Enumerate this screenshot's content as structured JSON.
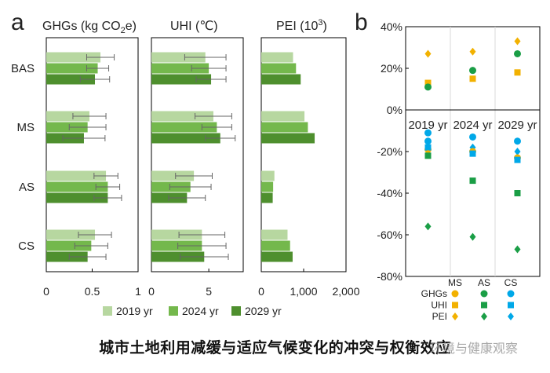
{
  "panel_labels": {
    "a": "a",
    "b": "b"
  },
  "caption": "城市土地利用减缓与适应气候变化的冲突与权衡效应",
  "watermark": "环境与健康观察",
  "chart_data": [
    {
      "type": "bar",
      "orientation": "horizontal",
      "panel": "a-1",
      "title": "GHGs (kg CO2e)",
      "categories": [
        "BAS",
        "MS",
        "AS",
        "CS"
      ],
      "xlim": [
        0,
        1
      ],
      "xticks": [
        0,
        0.5,
        1
      ],
      "xtick_labels": [
        "0",
        "0.5",
        "1"
      ],
      "series": [
        {
          "name": "2019 yr",
          "values": [
            0.59,
            0.47,
            0.65,
            0.53
          ],
          "err": [
            0.15,
            0.18,
            0.13,
            0.18
          ]
        },
        {
          "name": "2024 yr",
          "values": [
            0.56,
            0.45,
            0.67,
            0.49
          ],
          "err": [
            0.12,
            0.2,
            0.13,
            0.18
          ]
        },
        {
          "name": "2029 yr",
          "values": [
            0.53,
            0.41,
            0.67,
            0.45
          ],
          "err": [
            0.16,
            0.23,
            0.15,
            0.2
          ]
        }
      ]
    },
    {
      "type": "bar",
      "orientation": "horizontal",
      "panel": "a-2",
      "title": "UHI (℃)",
      "categories": [
        "BAS",
        "MS",
        "AS",
        "CS"
      ],
      "xlim": [
        0,
        8
      ],
      "xticks": [
        0,
        5
      ],
      "xtick_labels": [
        "0",
        "5"
      ],
      "series": [
        {
          "name": "2019 yr",
          "values": [
            4.7,
            5.4,
            3.7,
            4.4
          ],
          "err": [
            1.8,
            1.6,
            1.6,
            2.0
          ]
        },
        {
          "name": "2024 yr",
          "values": [
            5.0,
            5.7,
            3.4,
            4.4
          ],
          "err": [
            1.5,
            1.3,
            1.8,
            2.1
          ]
        },
        {
          "name": "2029 yr",
          "values": [
            5.2,
            6.0,
            3.1,
            4.6
          ],
          "err": [
            1.3,
            1.3,
            1.6,
            2.1
          ]
        }
      ]
    },
    {
      "type": "bar",
      "orientation": "horizontal",
      "panel": "a-3",
      "title": "PEI (103)",
      "categories": [
        "BAS",
        "MS",
        "AS",
        "CS"
      ],
      "xlim": [
        0,
        2000
      ],
      "xticks": [
        0,
        1000,
        2000
      ],
      "xtick_labels": [
        "0",
        "1,000",
        "2,000"
      ],
      "series": [
        {
          "name": "2019 yr",
          "values": [
            750,
            1020,
            310,
            620
          ]
        },
        {
          "name": "2024 yr",
          "values": [
            820,
            1100,
            280,
            680
          ]
        },
        {
          "name": "2029 yr",
          "values": [
            930,
            1260,
            270,
            740
          ]
        }
      ]
    },
    {
      "type": "scatter",
      "panel": "b",
      "groups": [
        "2019 yr",
        "2024 yr",
        "2029 yr"
      ],
      "ylim": [
        -80,
        40
      ],
      "yticks": [
        40,
        20,
        0,
        -20,
        -40,
        -60,
        -80
      ],
      "ytick_labels": [
        "40%",
        "20%",
        "0%",
        "-20%",
        "-40%",
        "-60%",
        "-80%"
      ],
      "legend_columns": [
        "MS",
        "AS",
        "CS"
      ],
      "series": [
        {
          "name": "GHGs",
          "marker": "circle",
          "color": "#00a8e8",
          "MS": [
            -11,
            -13,
            -15
          ],
          "AS": [
            -13,
            -18,
            -20
          ],
          "CS": [
            -16,
            -21,
            -23
          ]
        },
        {
          "name": "UHI",
          "marker": "square",
          "color": "#f2b100",
          "MS": [
            13,
            15,
            18
          ],
          "AS": [
            -21,
            -34,
            -40
          ],
          "CS": [
            -22,
            -22,
            -24
          ]
        },
        {
          "name": "PEI",
          "marker": "diamond",
          "color": "#22a84a",
          "MS": [
            27,
            28,
            33
          ],
          "AS": [
            -56,
            -61,
            -67
          ],
          "CS": [
            -19,
            -20,
            -23
          ]
        }
      ],
      "points": [
        {
          "group": "2019 yr",
          "col": 0,
          "value": 27,
          "marker": "diamond",
          "color": "#f2b100"
        },
        {
          "group": "2019 yr",
          "col": 0,
          "value": 13,
          "marker": "square",
          "color": "#f2b100"
        },
        {
          "group": "2019 yr",
          "col": 0,
          "value": 11,
          "marker": "circle",
          "color": "#1a9e46"
        },
        {
          "group": "2019 yr",
          "col": 0,
          "value": -11,
          "marker": "circle",
          "color": "#00a8e8"
        },
        {
          "group": "2019 yr",
          "col": 0,
          "value": -15,
          "marker": "circle",
          "color": "#00a8e8"
        },
        {
          "group": "2019 yr",
          "col": 0,
          "value": -19,
          "marker": "circle",
          "color": "#f2b100"
        },
        {
          "group": "2019 yr",
          "col": 0,
          "value": -18,
          "marker": "square",
          "color": "#00a8e8"
        },
        {
          "group": "2019 yr",
          "col": 0,
          "value": -21,
          "marker": "diamond",
          "color": "#f2b100"
        },
        {
          "group": "2019 yr",
          "col": 0,
          "value": -22,
          "marker": "square",
          "color": "#1a9e46"
        },
        {
          "group": "2019 yr",
          "col": 0,
          "value": -56,
          "marker": "diamond",
          "color": "#1a9e46"
        },
        {
          "group": "2024 yr",
          "col": 1,
          "value": 28,
          "marker": "diamond",
          "color": "#f2b100"
        },
        {
          "group": "2024 yr",
          "col": 1,
          "value": 19,
          "marker": "circle",
          "color": "#1a9e46"
        },
        {
          "group": "2024 yr",
          "col": 1,
          "value": 15,
          "marker": "square",
          "color": "#f2b100"
        },
        {
          "group": "2024 yr",
          "col": 1,
          "value": -13,
          "marker": "circle",
          "color": "#00a8e8"
        },
        {
          "group": "2024 yr",
          "col": 1,
          "value": -18,
          "marker": "diamond",
          "color": "#00a8e8"
        },
        {
          "group": "2024 yr",
          "col": 1,
          "value": -20,
          "marker": "circle",
          "color": "#f2b100"
        },
        {
          "group": "2024 yr",
          "col": 1,
          "value": -21,
          "marker": "square",
          "color": "#00a8e8"
        },
        {
          "group": "2024 yr",
          "col": 1,
          "value": -34,
          "marker": "square",
          "color": "#1a9e46"
        },
        {
          "group": "2024 yr",
          "col": 1,
          "value": -61,
          "marker": "diamond",
          "color": "#1a9e46"
        },
        {
          "group": "2029 yr",
          "col": 2,
          "value": 33,
          "marker": "diamond",
          "color": "#f2b100"
        },
        {
          "group": "2029 yr",
          "col": 2,
          "value": 27,
          "marker": "circle",
          "color": "#1a9e46"
        },
        {
          "group": "2029 yr",
          "col": 2,
          "value": 18,
          "marker": "square",
          "color": "#f2b100"
        },
        {
          "group": "2029 yr",
          "col": 2,
          "value": -15,
          "marker": "circle",
          "color": "#00a8e8"
        },
        {
          "group": "2029 yr",
          "col": 2,
          "value": -20,
          "marker": "diamond",
          "color": "#00a8e8"
        },
        {
          "group": "2029 yr",
          "col": 2,
          "value": -23,
          "marker": "circle",
          "color": "#f2b100"
        },
        {
          "group": "2029 yr",
          "col": 2,
          "value": -24,
          "marker": "square",
          "color": "#00a8e8"
        },
        {
          "group": "2029 yr",
          "col": 2,
          "value": -40,
          "marker": "square",
          "color": "#1a9e46"
        },
        {
          "group": "2029 yr",
          "col": 2,
          "value": -67,
          "marker": "diamond",
          "color": "#1a9e46"
        }
      ],
      "legend": {
        "headers": [
          "MS",
          "AS",
          "CS"
        ],
        "rows": [
          {
            "label": "GHGs",
            "marker": "circle"
          },
          {
            "label": "UHI",
            "marker": "square"
          },
          {
            "label": "PEI",
            "marker": "diamond"
          }
        ],
        "col_colors": [
          "#f2b100",
          "#1a9e46",
          "#00a8e8"
        ]
      }
    }
  ],
  "colors": {
    "y2019": "#b7d7a0",
    "y2024": "#74b84c",
    "y2029": "#4e8f2e",
    "error_bar": "#666666",
    "axis": "#000000",
    "grid": "#d9d9d9"
  }
}
